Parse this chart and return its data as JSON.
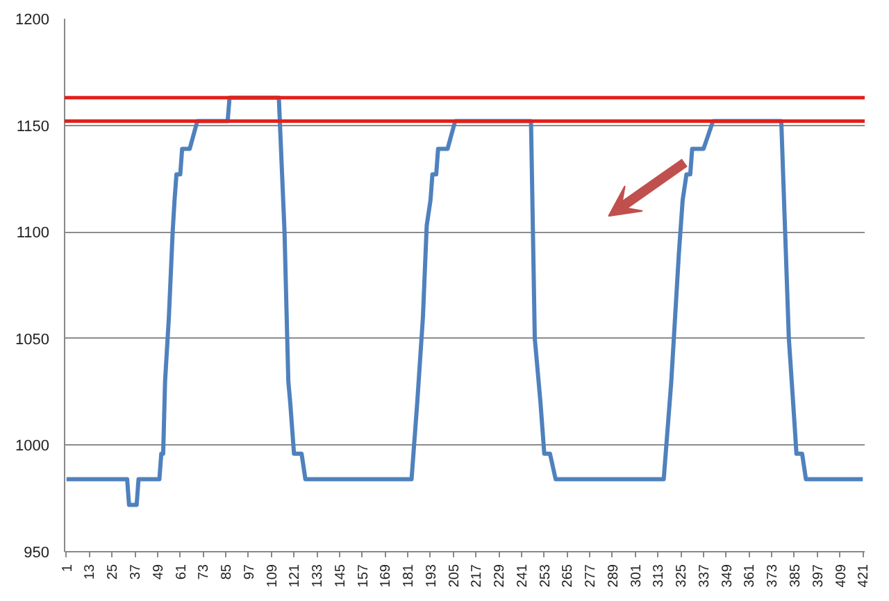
{
  "chart_data": {
    "type": "line",
    "series": [
      {
        "color": "#4f81bd",
        "x": [
          1,
          33,
          34,
          38,
          39,
          50,
          51,
          52,
          53,
          55,
          57,
          58,
          59,
          61,
          62,
          66,
          70,
          86,
          87,
          113,
          116,
          118,
          119,
          121,
          125,
          127,
          183,
          186,
          189,
          191,
          193,
          194,
          196,
          197,
          202,
          206,
          246,
          248,
          251,
          253,
          256,
          259,
          316,
          320,
          322,
          324,
          326,
          328,
          330,
          331,
          337,
          342,
          378,
          382,
          385,
          386,
          389,
          391,
          421
        ],
        "values": [
          984,
          984,
          972,
          972,
          984,
          984,
          996,
          996,
          1030,
          1060,
          1100,
          1115,
          1127,
          1127,
          1139,
          1139,
          1152,
          1152,
          1163,
          1163,
          1100,
          1030,
          1020,
          996,
          996,
          984,
          984,
          1020,
          1060,
          1103,
          1115,
          1127,
          1127,
          1139,
          1139,
          1152,
          1152,
          1050,
          1020,
          996,
          996,
          984,
          984,
          1030,
          1060,
          1090,
          1115,
          1127,
          1127,
          1139,
          1139,
          1152,
          1152,
          1050,
          1010,
          996,
          996,
          984,
          984
        ]
      }
    ],
    "xlim": [
      0,
      422
    ],
    "xticks": [
      1,
      13,
      25,
      37,
      49,
      61,
      73,
      85,
      97,
      109,
      121,
      133,
      145,
      157,
      169,
      181,
      193,
      205,
      217,
      229,
      241,
      253,
      265,
      277,
      289,
      301,
      313,
      325,
      337,
      349,
      361,
      373,
      385,
      397,
      409,
      421
    ],
    "ylim": [
      950,
      1200
    ],
    "yticks": [
      950,
      1000,
      1050,
      1100,
      1150,
      1200
    ],
    "grid": "y",
    "marker": "none",
    "line_style": "solid",
    "ref_lines": [
      {
        "axis": "y",
        "value": 1163,
        "color": "#e3201b"
      },
      {
        "axis": "y",
        "value": 1152,
        "color": "#e3201b"
      }
    ]
  }
}
